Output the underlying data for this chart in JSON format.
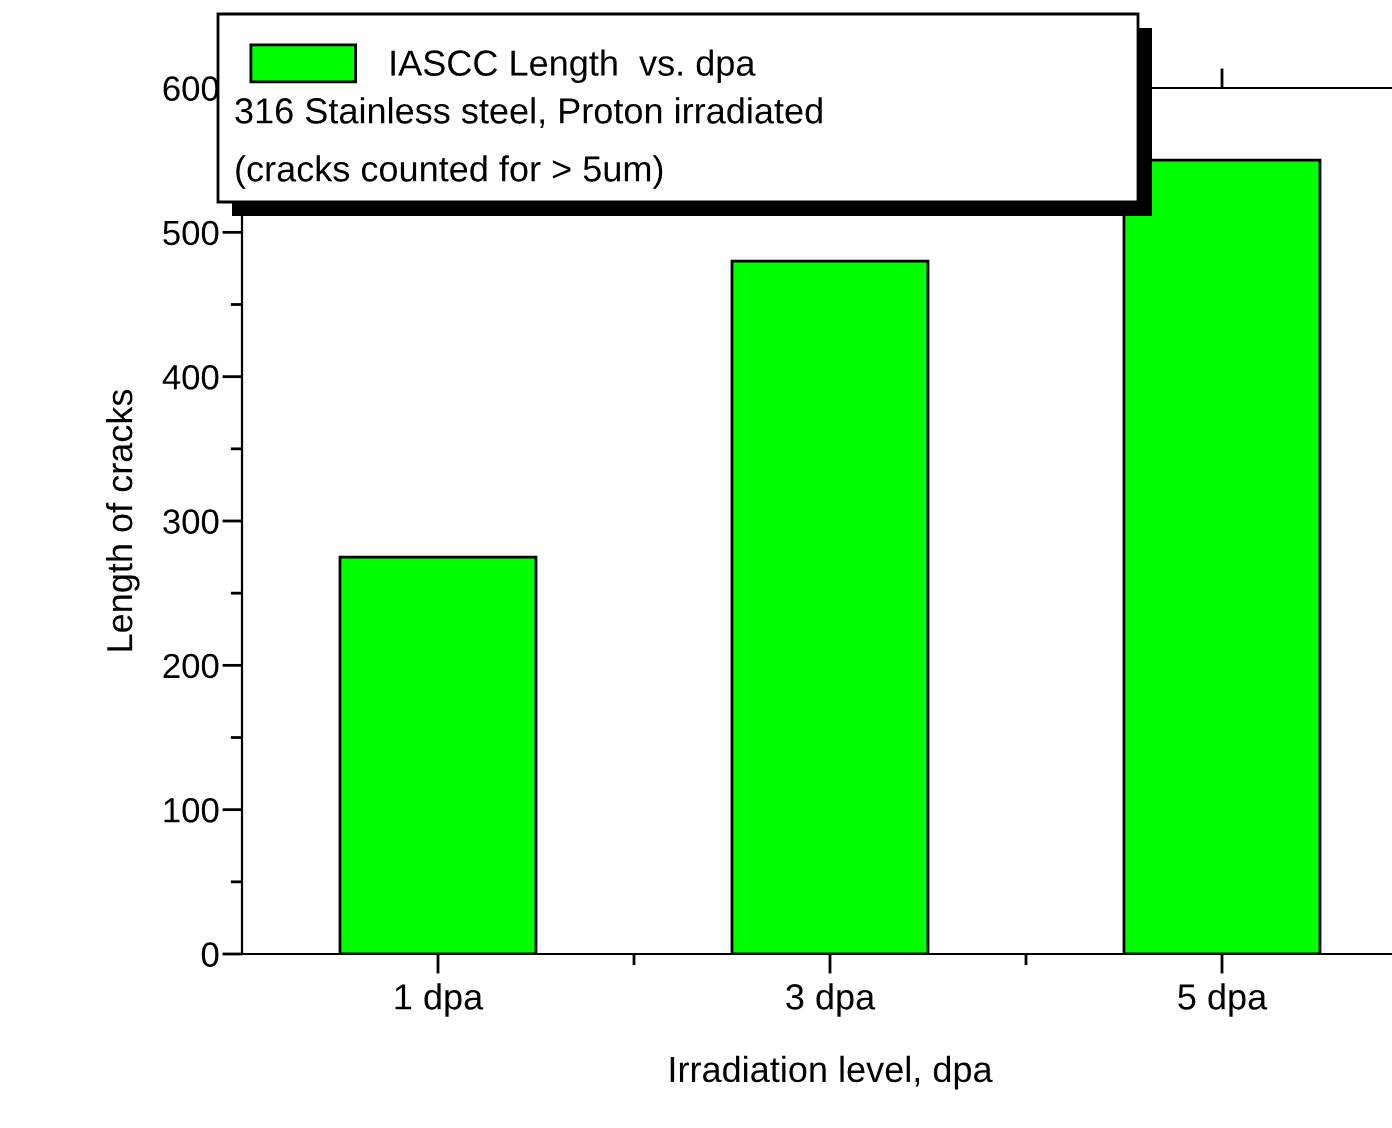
{
  "chart_data": {
    "type": "bar",
    "xlabel": "Irradiation level, dpa",
    "ylabel": "Length of cracks",
    "categories": [
      "1 dpa",
      "3 dpa",
      "5 dpa"
    ],
    "series": [
      {
        "name": "IASCC Length  vs. dpa",
        "color": "#00ff00",
        "values": [
          275,
          480,
          550
        ]
      }
    ],
    "annotations": [
      "316 Stainless steel, Proton irradiated",
      "(cracks counted for > 5um)"
    ],
    "ylim": [
      0,
      600
    ],
    "yticks": [
      0,
      100,
      200,
      300,
      400,
      500,
      600
    ],
    "legend": "top left"
  }
}
